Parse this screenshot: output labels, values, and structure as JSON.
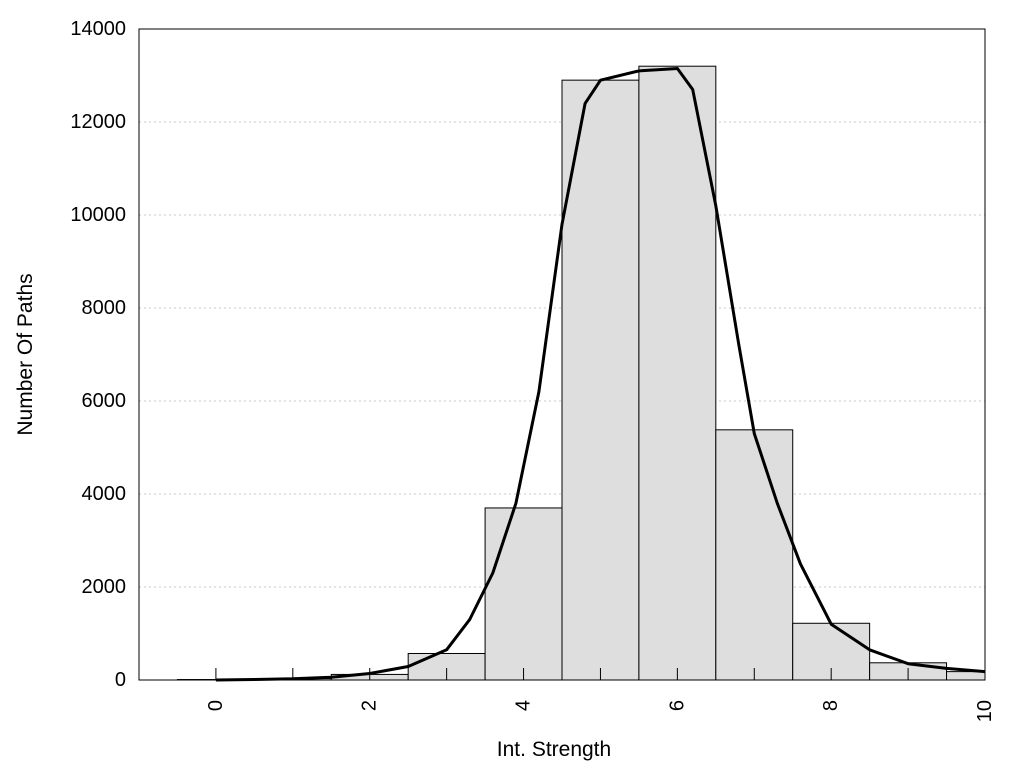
{
  "chart_data": {
    "type": "bar",
    "title": "",
    "xlabel": "Int. Strength",
    "ylabel": "Number Of Paths",
    "xlim": [
      -1,
      10
    ],
    "ylim": [
      0,
      14000
    ],
    "x_ticks": [
      0,
      2,
      4,
      6,
      8,
      10
    ],
    "y_ticks": [
      0,
      2000,
      4000,
      6000,
      8000,
      10000,
      12000,
      14000
    ],
    "grid": "horizontal dotted",
    "bar_width": 1,
    "bar_color": "#dedede",
    "bar_edge_color": "#000000",
    "bars": [
      {
        "x": 0,
        "value": 10
      },
      {
        "x": 1,
        "value": 30
      },
      {
        "x": 2,
        "value": 120
      },
      {
        "x": 3,
        "value": 570
      },
      {
        "x": 4,
        "value": 3700
      },
      {
        "x": 5,
        "value": 12900
      },
      {
        "x": 6,
        "value": 13200
      },
      {
        "x": 7,
        "value": 5380
      },
      {
        "x": 8,
        "value": 1220
      },
      {
        "x": 9,
        "value": 370
      },
      {
        "x": 10,
        "value": 180
      }
    ],
    "curve": {
      "color": "#000000",
      "x": [
        0,
        0.5,
        1,
        1.5,
        2,
        2.5,
        3,
        3.3,
        3.6,
        3.9,
        4.2,
        4.5,
        4.8,
        5.0,
        5.5,
        6.0,
        6.2,
        6.5,
        6.8,
        7.0,
        7.3,
        7.6,
        8.0,
        8.5,
        9.0,
        9.5,
        10
      ],
      "y": [
        0,
        10,
        25,
        60,
        140,
        290,
        650,
        1300,
        2300,
        3800,
        6200,
        9800,
        12400,
        12900,
        13100,
        13150,
        12700,
        10200,
        7200,
        5300,
        3800,
        2500,
        1200,
        650,
        350,
        250,
        180
      ]
    }
  }
}
